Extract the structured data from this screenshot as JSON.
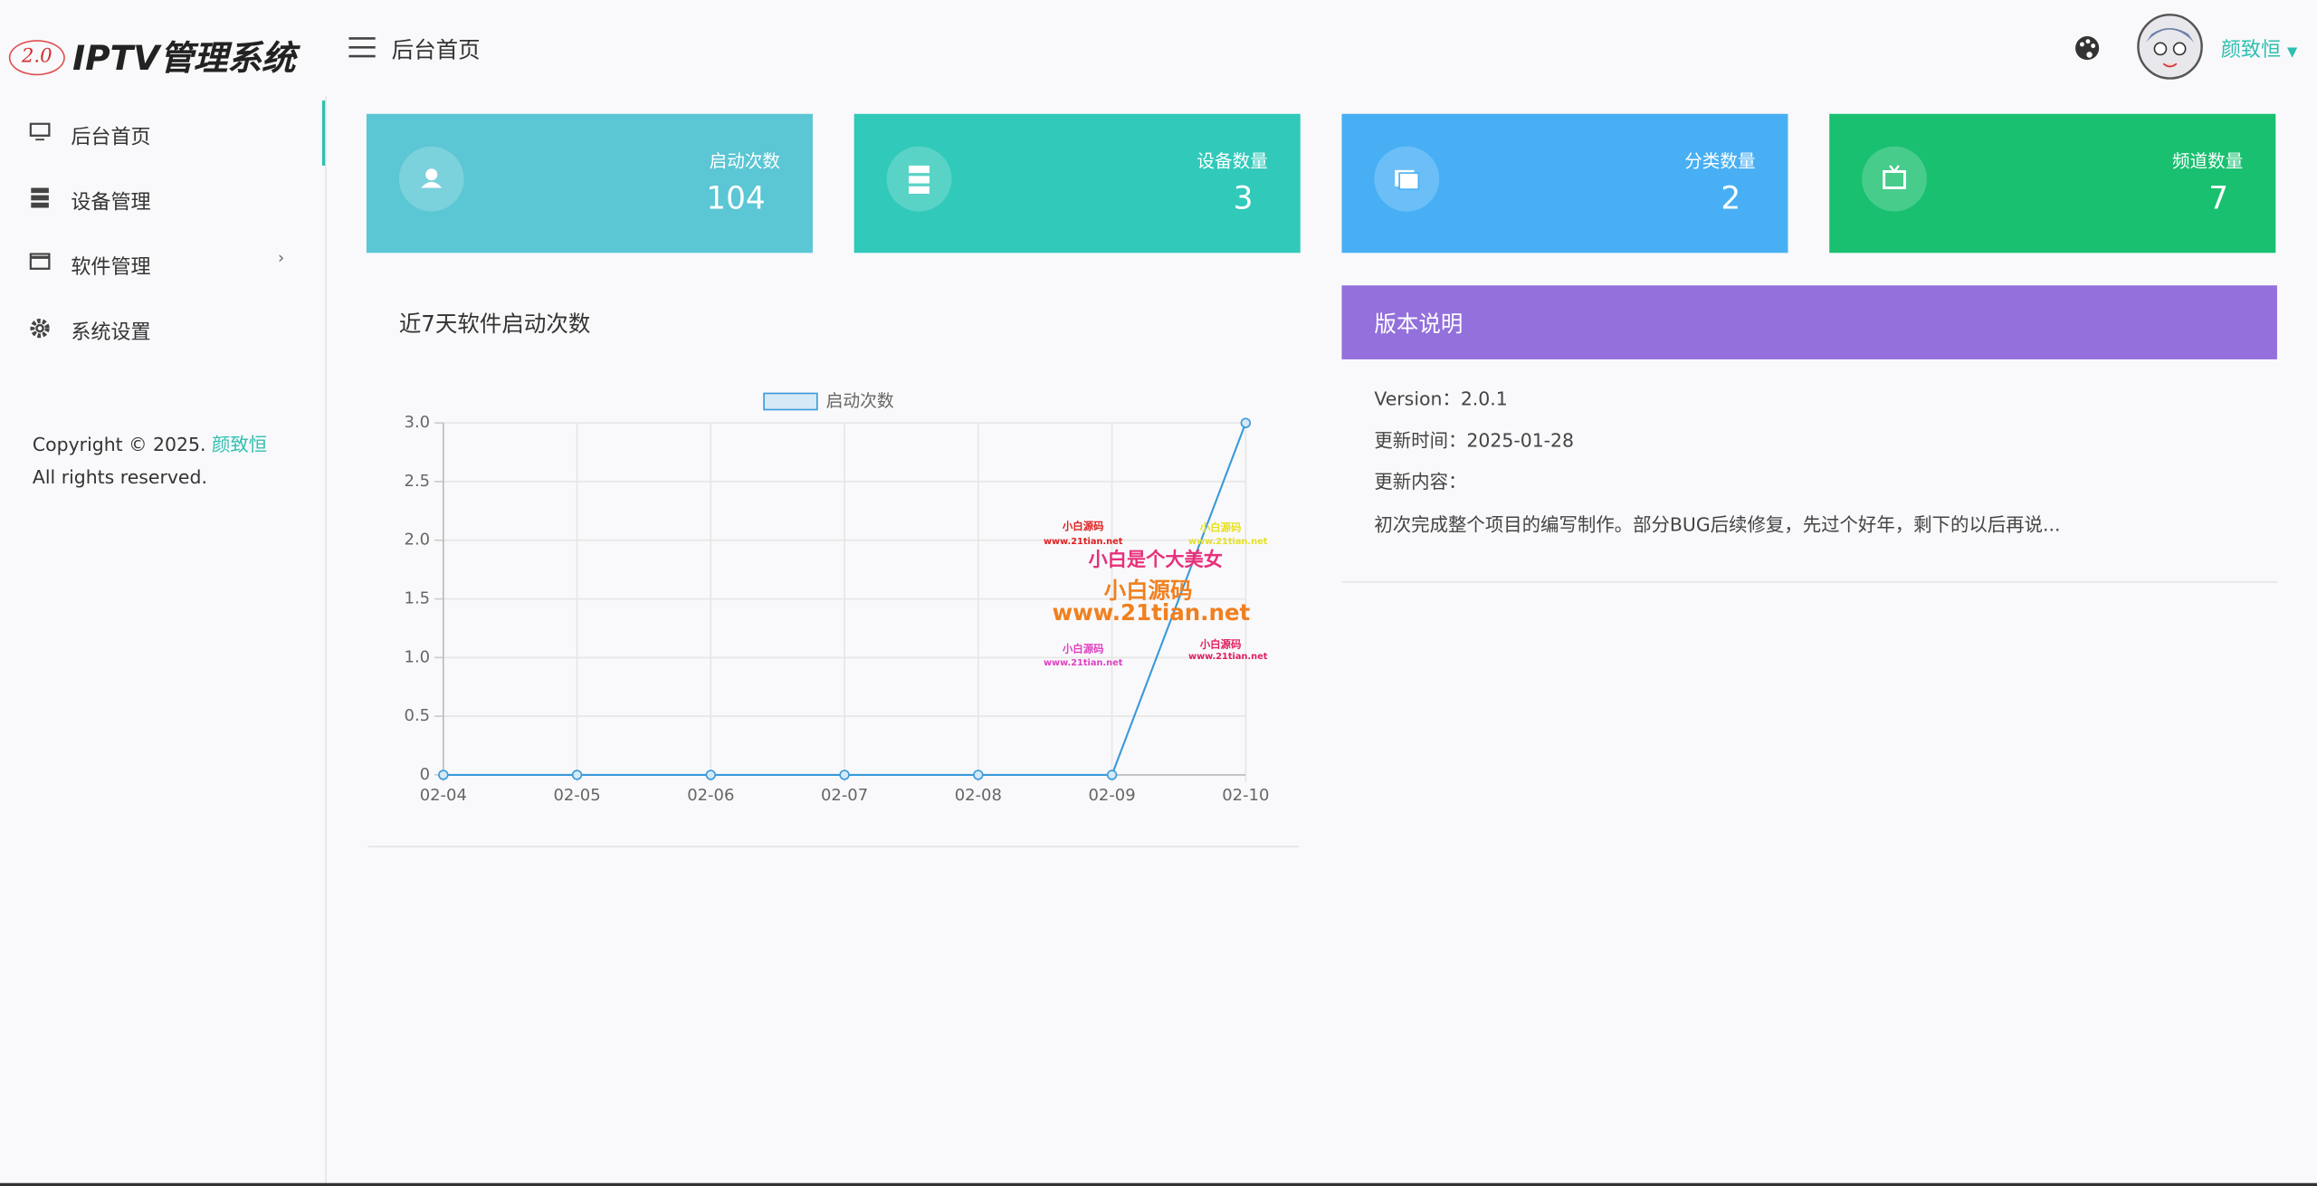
{
  "header": {
    "logo_badge": "2.0",
    "logo_text": "IPTV管理系统",
    "breadcrumb": "后台首页",
    "user": "颜致恒"
  },
  "sidebar": {
    "menu": [
      "后台首页",
      "设备管理",
      "软件管理",
      "系统设置"
    ],
    "copyright": [
      "Copyright © 2025. ",
      "颜致恒",
      " All rights reserved."
    ]
  },
  "stats": [
    {
      "label": "启动次数",
      "value": 104
    },
    {
      "label": "设备数量",
      "value": 3
    },
    {
      "label": "分类数量",
      "value": 2
    },
    {
      "label": "频道数量",
      "value": 7
    }
  ],
  "chart_data": {
    "type": "line",
    "title": "近7天软件启动次数",
    "categories": [
      "02-04",
      "02-05",
      "02-06",
      "02-07",
      "02-08",
      "02-09",
      "02-10"
    ],
    "series": [
      {
        "name": "启动次数",
        "color": "#3a9ad9",
        "values": [
          0,
          0,
          0,
          0,
          0,
          0,
          3
        ]
      }
    ],
    "ylim": [
      0,
      3
    ],
    "yticks": [
      0,
      0.5,
      {
        "value": 1,
        "label": "1.0"
      },
      1.5,
      {
        "value": 2,
        "label": "2.0"
      },
      2.5,
      {
        "value": 3,
        "label": "3.0"
      }
    ],
    "grid": true,
    "legend": "top"
  },
  "watermark": [
    "小白源码",
    "www.21tian.net",
    "小白源码",
    "www.21tian.net",
    "小白是个大美女",
    "小白源码",
    "www.21tian.net",
    "小白源码",
    "www.21tian.net",
    "小白源码",
    "www.21tian.net"
  ],
  "version": {
    "title": "版本说明",
    "lines": [
      "Version：2.0.1",
      "更新时间：2025-01-28",
      "更新内容：",
      "初次完成整个项目的编写制作。部分BUG后续修复，先过个好年，剩下的以后再说..."
    ]
  }
}
